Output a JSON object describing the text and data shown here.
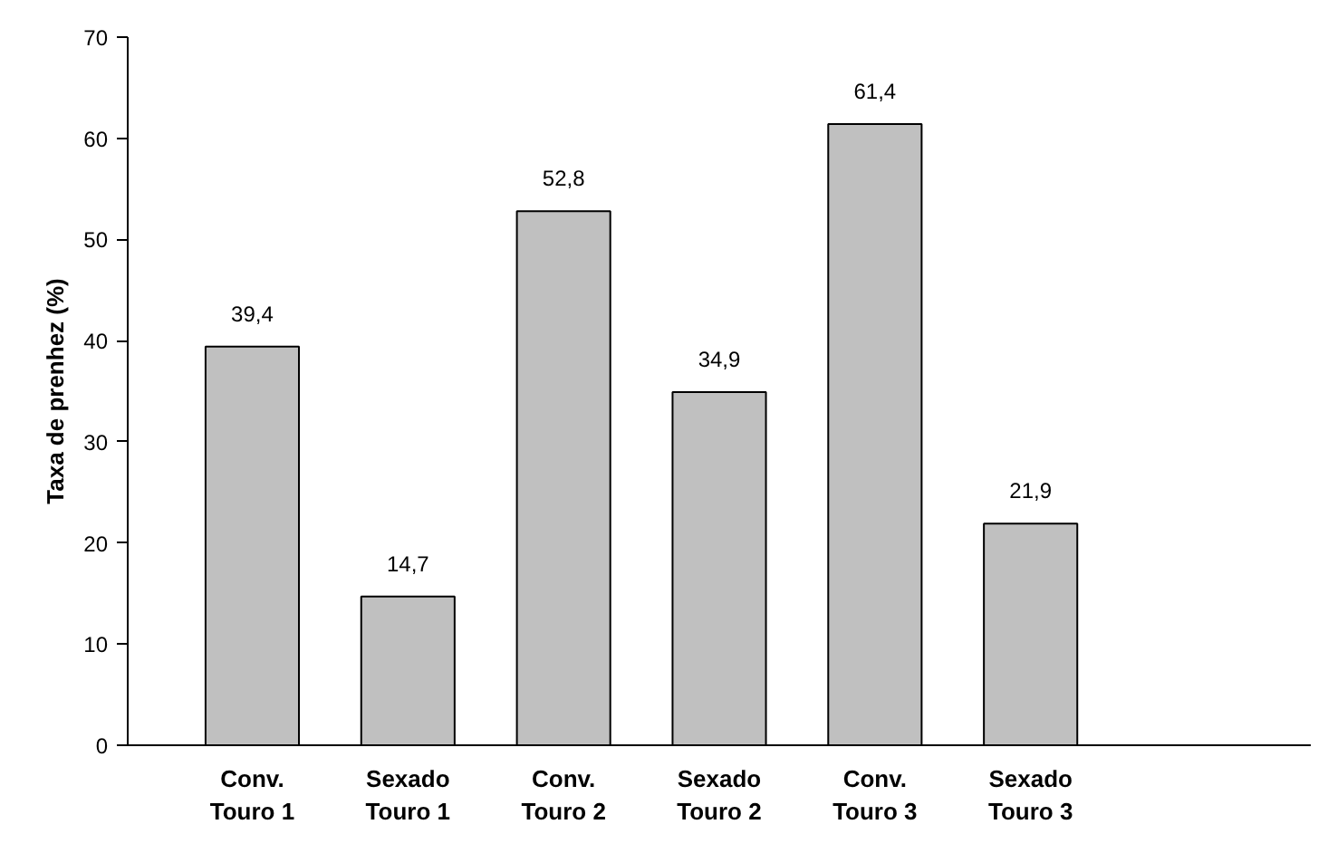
{
  "chart_data": {
    "type": "bar",
    "ylabel": "Taxa de prenhez (%)",
    "categories": [
      "Conv.\nTouro 1",
      "Sexado\nTouro 1",
      "Conv.\nTouro 2",
      "Sexado\nTouro 2",
      "Conv.\nTouro 3",
      "Sexado\nTouro 3"
    ],
    "values": [
      39.4,
      14.7,
      52.8,
      34.9,
      61.4,
      21.9
    ],
    "value_labels": [
      "39,4",
      "14,7",
      "52,8",
      "34,9",
      "61,4",
      "21,9"
    ],
    "color": "#c0c0c0",
    "ylim": [
      0,
      70
    ],
    "yticks": [
      0,
      10,
      20,
      30,
      40,
      50,
      60,
      70
    ],
    "grid": false
  }
}
